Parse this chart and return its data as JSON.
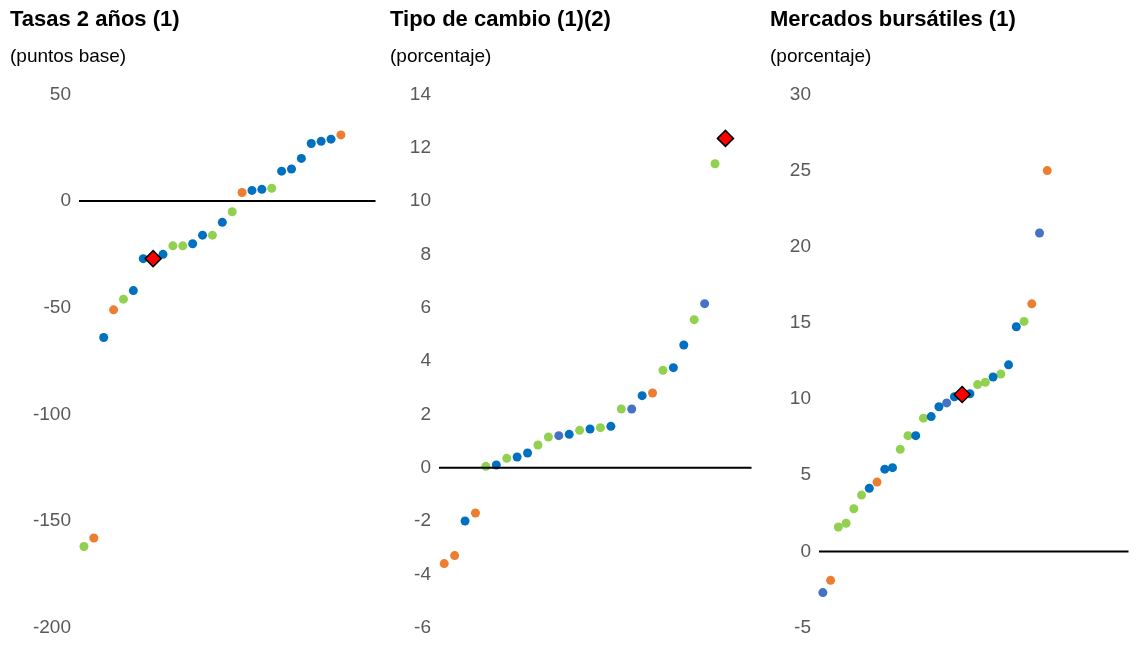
{
  "chart_data": [
    {
      "type": "scatter",
      "title": "Tasas 2 años (1)",
      "subtitle": "(puntos base)",
      "categories": [
        null,
        null,
        null,
        null,
        null,
        null,
        null,
        null,
        null,
        null,
        null,
        null,
        null,
        null,
        null,
        null,
        null,
        null,
        null,
        null,
        null,
        null,
        null,
        null,
        null,
        null,
        null,
        null,
        null,
        null
      ],
      "series": [
        {
          "color": "#0070c0",
          "values": [
            null,
            null,
            -64,
            null,
            null,
            -42,
            -27,
            null,
            -25,
            null,
            null,
            -20,
            -16,
            null,
            -10,
            null,
            null,
            5,
            5.5,
            null,
            14,
            15,
            20,
            27,
            28,
            29,
            null,
            null,
            null,
            null
          ]
        },
        {
          "color": "#ed7d31",
          "values": [
            null,
            -158,
            null,
            -51,
            null,
            null,
            null,
            null,
            null,
            null,
            null,
            null,
            null,
            null,
            null,
            null,
            4,
            null,
            null,
            null,
            null,
            null,
            null,
            null,
            null,
            null,
            31,
            null,
            null,
            null
          ]
        },
        {
          "color": "#92d050",
          "values": [
            -162,
            null,
            null,
            null,
            -46,
            null,
            null,
            null,
            null,
            -21,
            -21,
            null,
            null,
            -16,
            null,
            -5,
            null,
            null,
            null,
            6,
            null,
            null,
            null,
            null,
            null,
            null,
            null,
            null,
            null,
            null
          ]
        },
        {
          "color": "#ff0000",
          "marker": "diamond",
          "values": [
            null,
            null,
            null,
            null,
            null,
            null,
            null,
            -27,
            null,
            null,
            null,
            null,
            null,
            null,
            null,
            null,
            null,
            null,
            null,
            null,
            null,
            null,
            null,
            null,
            null,
            null,
            null,
            null,
            null,
            null
          ]
        }
      ],
      "ylim": [
        -200,
        50
      ],
      "yticks": [
        -200,
        -150,
        -100,
        -50,
        0,
        50
      ],
      "grid": false,
      "legend": false,
      "marker": "circle",
      "ref_lines": [
        {
          "axis": "y",
          "value": 0,
          "color": "#000000"
        }
      ]
    },
    {
      "type": "scatter",
      "title": "Tipo de cambio (1)(2)",
      "subtitle": "(porcentaje)",
      "categories": [
        null,
        null,
        null,
        null,
        null,
        null,
        null,
        null,
        null,
        null,
        null,
        null,
        null,
        null,
        null,
        null,
        null,
        null,
        null,
        null,
        null,
        null,
        null,
        null,
        null,
        null,
        null,
        null,
        null,
        null
      ],
      "series": [
        {
          "color": "#0070c0",
          "values": [
            null,
            null,
            -2.0,
            null,
            null,
            0.1,
            null,
            0.4,
            0.55,
            null,
            null,
            null,
            1.25,
            null,
            1.45,
            null,
            1.55,
            null,
            null,
            2.7,
            null,
            null,
            3.75,
            4.6,
            null,
            null,
            null,
            null,
            null,
            null
          ]
        },
        {
          "color": "#ed7d31",
          "values": [
            -3.6,
            -3.3,
            null,
            -1.7,
            null,
            null,
            null,
            null,
            null,
            null,
            null,
            null,
            null,
            null,
            null,
            null,
            null,
            null,
            null,
            null,
            2.8,
            null,
            null,
            null,
            null,
            null,
            null,
            null,
            null,
            null
          ]
        },
        {
          "color": "#92d050",
          "values": [
            null,
            null,
            null,
            null,
            0.05,
            null,
            0.35,
            null,
            null,
            0.85,
            1.15,
            null,
            null,
            1.4,
            null,
            1.5,
            null,
            2.2,
            null,
            null,
            null,
            3.65,
            null,
            null,
            5.55,
            null,
            11.4,
            null,
            null,
            null
          ]
        },
        {
          "color": "#4472c4",
          "values": [
            null,
            null,
            null,
            null,
            null,
            null,
            null,
            null,
            null,
            null,
            null,
            1.2,
            null,
            null,
            null,
            null,
            null,
            null,
            2.2,
            null,
            null,
            null,
            null,
            null,
            null,
            6.15,
            null,
            null,
            null,
            null
          ]
        },
        {
          "color": "#ff0000",
          "marker": "diamond",
          "values": [
            null,
            null,
            null,
            null,
            null,
            null,
            null,
            null,
            null,
            null,
            null,
            null,
            null,
            null,
            null,
            null,
            null,
            null,
            null,
            null,
            null,
            null,
            null,
            null,
            null,
            null,
            null,
            12.35,
            null,
            null
          ]
        }
      ],
      "ylim": [
        -6,
        14
      ],
      "yticks": [
        -6,
        -4,
        -2,
        0,
        2,
        4,
        6,
        8,
        10,
        12,
        14
      ],
      "grid": false,
      "legend": false,
      "marker": "circle",
      "ref_lines": [
        {
          "axis": "y",
          "value": 0,
          "color": "#000000"
        }
      ]
    },
    {
      "type": "scatter",
      "title": "Mercados bursátiles (1)",
      "subtitle": "(porcentaje)",
      "categories": [
        null,
        null,
        null,
        null,
        null,
        null,
        null,
        null,
        null,
        null,
        null,
        null,
        null,
        null,
        null,
        null,
        null,
        null,
        null,
        null,
        null,
        null,
        null,
        null,
        null,
        null,
        null,
        null,
        null,
        null,
        null,
        null,
        null,
        null,
        null,
        null,
        null,
        null,
        null,
        null
      ],
      "series": [
        {
          "color": "#0070c0",
          "values": [
            null,
            null,
            null,
            null,
            null,
            null,
            4.15,
            null,
            5.4,
            5.5,
            null,
            null,
            7.6,
            null,
            8.85,
            9.5,
            null,
            10.15,
            null,
            10.35,
            null,
            null,
            11.45,
            null,
            12.25,
            14.75,
            null,
            null,
            null,
            null,
            null,
            null,
            null,
            null,
            null,
            null,
            null,
            null,
            null,
            null
          ]
        },
        {
          "color": "#ed7d31",
          "values": [
            null,
            -1.9,
            null,
            null,
            null,
            null,
            null,
            4.55,
            null,
            null,
            null,
            null,
            null,
            null,
            null,
            null,
            null,
            null,
            null,
            null,
            null,
            null,
            null,
            null,
            null,
            null,
            null,
            16.25,
            null,
            25,
            null,
            null,
            null,
            null,
            null,
            null,
            null,
            null,
            null,
            null
          ]
        },
        {
          "color": "#92d050",
          "values": [
            null,
            null,
            1.6,
            1.85,
            2.8,
            3.7,
            null,
            null,
            null,
            null,
            6.7,
            7.6,
            null,
            8.75,
            null,
            null,
            null,
            null,
            null,
            null,
            10.95,
            11.1,
            null,
            11.65,
            null,
            null,
            15.1,
            null,
            null,
            null,
            null,
            null,
            null,
            null,
            null,
            null,
            null,
            null,
            null,
            null
          ]
        },
        {
          "color": "#4472c4",
          "values": [
            -2.7,
            null,
            null,
            null,
            null,
            null,
            null,
            null,
            null,
            null,
            null,
            null,
            null,
            null,
            null,
            null,
            9.75,
            null,
            null,
            null,
            null,
            null,
            null,
            null,
            null,
            null,
            null,
            null,
            20.9,
            null,
            null,
            null,
            null,
            null,
            null,
            null,
            null,
            null,
            null,
            null
          ]
        },
        {
          "color": "#ff0000",
          "marker": "diamond",
          "values": [
            null,
            null,
            null,
            null,
            null,
            null,
            null,
            null,
            null,
            null,
            null,
            null,
            null,
            null,
            null,
            null,
            null,
            null,
            10.3,
            null,
            null,
            null,
            null,
            null,
            null,
            null,
            null,
            null,
            null,
            null,
            null,
            null,
            null,
            null,
            null,
            null,
            null,
            null,
            null,
            null
          ]
        }
      ],
      "ylim": [
        -5,
        30
      ],
      "yticks": [
        -5,
        0,
        5,
        10,
        15,
        20,
        25,
        30
      ],
      "grid": false,
      "legend": false,
      "marker": "circle",
      "ref_lines": [
        {
          "axis": "y",
          "value": 0,
          "color": "#000000"
        }
      ]
    }
  ]
}
